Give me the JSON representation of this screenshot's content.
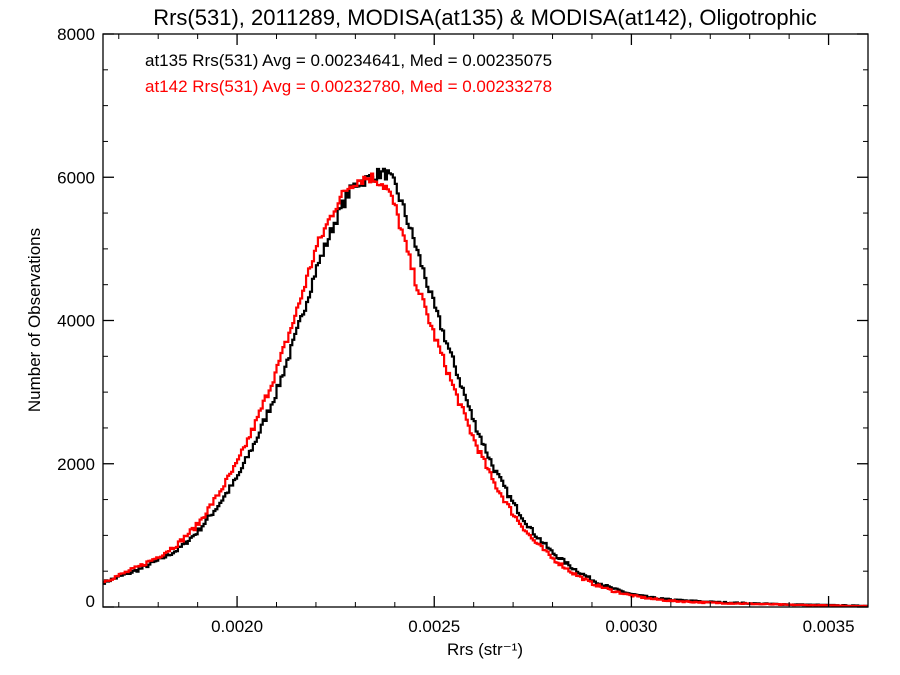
{
  "chart_data": {
    "type": "line",
    "title": "Rrs(531), 2011289, MODISA(at135) & MODISA(at142), Oligotrophic",
    "xlabel": "Rrs (str⁻¹)",
    "ylabel": "Number of Observations",
    "xlim": [
      0.00166,
      0.0036
    ],
    "ylim": [
      0,
      8000
    ],
    "xticks": [
      0.002,
      0.0025,
      0.003,
      0.0035
    ],
    "xtick_labels": [
      "0.0020",
      "0.0025",
      "0.0030",
      "0.0035"
    ],
    "yticks": [
      0,
      2000,
      4000,
      6000,
      8000
    ],
    "ytick_labels": [
      "0",
      "2000",
      "4000",
      "6000",
      "8000"
    ],
    "grid": false,
    "step_width": 5e-06,
    "annotations": [
      "at135 Rrs(531) Avg = 0.00234641, Med = 0.00235075",
      "at142 Rrs(531) Avg = 0.00232780, Med = 0.00233278"
    ],
    "series": [
      {
        "color": "#000000",
        "style": "histogram-step",
        "x": [
          0.00166,
          0.0017,
          0.00175,
          0.0018,
          0.00185,
          0.0019,
          0.00195,
          0.002,
          0.00205,
          0.0021,
          0.00215,
          0.0022,
          0.00225,
          0.00228,
          0.0023,
          0.00232,
          0.00234,
          0.00236,
          0.00238,
          0.0024,
          0.00242,
          0.00245,
          0.0025,
          0.00255,
          0.0026,
          0.00265,
          0.0027,
          0.00275,
          0.0028,
          0.00285,
          0.0029,
          0.00295,
          0.003,
          0.00305,
          0.0031,
          0.0032,
          0.0033,
          0.0034,
          0.0035,
          0.0036
        ],
        "values": [
          340,
          420,
          520,
          650,
          800,
          1050,
          1400,
          1800,
          2350,
          3000,
          3800,
          4700,
          5400,
          5750,
          5900,
          5950,
          6000,
          6050,
          6050,
          5900,
          5600,
          5100,
          4200,
          3400,
          2600,
          1950,
          1450,
          1050,
          760,
          550,
          380,
          260,
          180,
          130,
          100,
          70,
          50,
          35,
          25,
          15
        ]
      },
      {
        "color": "#ff0000",
        "style": "histogram-step",
        "x": [
          0.00166,
          0.0017,
          0.00175,
          0.0018,
          0.00185,
          0.0019,
          0.00195,
          0.002,
          0.00205,
          0.0021,
          0.00215,
          0.0022,
          0.00225,
          0.00228,
          0.0023,
          0.00232,
          0.00234,
          0.00236,
          0.00238,
          0.0024,
          0.00242,
          0.00245,
          0.0025,
          0.00255,
          0.0026,
          0.00265,
          0.0027,
          0.00275,
          0.0028,
          0.00285,
          0.0029,
          0.00295,
          0.003,
          0.00305,
          0.0031,
          0.0032,
          0.0033,
          0.0034,
          0.0035,
          0.0036
        ],
        "values": [
          350,
          440,
          560,
          700,
          880,
          1150,
          1550,
          2000,
          2600,
          3300,
          4100,
          5000,
          5600,
          5850,
          5950,
          5980,
          6000,
          5950,
          5850,
          5600,
          5200,
          4600,
          3800,
          3050,
          2350,
          1750,
          1300,
          940,
          680,
          480,
          330,
          230,
          160,
          115,
          85,
          60,
          45,
          30,
          20,
          12
        ]
      }
    ]
  }
}
